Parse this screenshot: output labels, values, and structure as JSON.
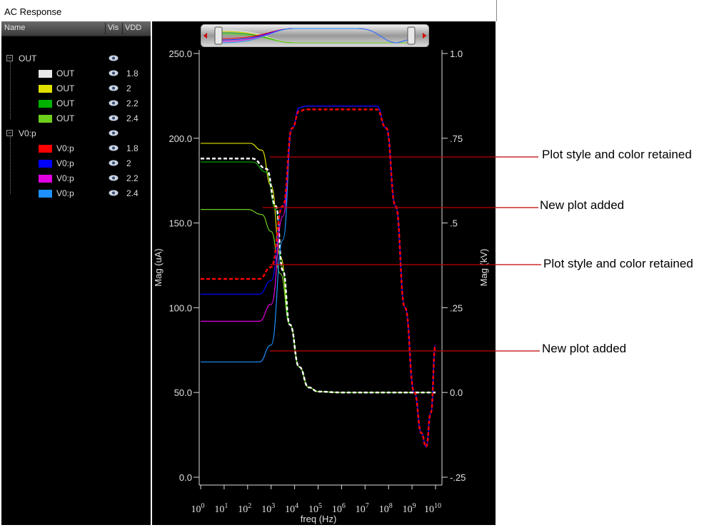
{
  "window": {
    "title": "AC Response"
  },
  "tree": {
    "headers": {
      "name": "Name",
      "vis": "Vis",
      "vdd": "VDD"
    },
    "groups": [
      {
        "label": "OUT",
        "items": [
          {
            "label": "OUT",
            "vdd": "1.8",
            "color": "#e8e8e8"
          },
          {
            "label": "OUT",
            "vdd": "2",
            "color": "#e0e000"
          },
          {
            "label": "OUT",
            "vdd": "2.2",
            "color": "#00b000"
          },
          {
            "label": "OUT",
            "vdd": "2.4",
            "color": "#6ccf1c"
          }
        ]
      },
      {
        "label": "V0:p",
        "items": [
          {
            "label": "V0:p",
            "vdd": "1.8",
            "color": "#ff0000"
          },
          {
            "label": "V0:p",
            "vdd": "2",
            "color": "#0000ff"
          },
          {
            "label": "V0:p",
            "vdd": "2.2",
            "color": "#e000e0"
          },
          {
            "label": "V0:p",
            "vdd": "2.4",
            "color": "#1e90ff"
          }
        ]
      }
    ]
  },
  "chart_data": {
    "type": "line",
    "xlabel": "freq (Hz)",
    "ylabel_left": "Mag (uA)",
    "ylabel_right": "Mag (kV)",
    "x_scale": "log",
    "x_ticks": [
      {
        "base": "10",
        "exp": "0"
      },
      {
        "base": "10",
        "exp": "1"
      },
      {
        "base": "10",
        "exp": "2"
      },
      {
        "base": "10",
        "exp": "3"
      },
      {
        "base": "10",
        "exp": "4"
      },
      {
        "base": "10",
        "exp": "5"
      },
      {
        "base": "10",
        "exp": "6"
      },
      {
        "base": "10",
        "exp": "7"
      },
      {
        "base": "10",
        "exp": "8"
      },
      {
        "base": "10",
        "exp": "9"
      },
      {
        "base": "10",
        "exp": "10"
      }
    ],
    "y_left_ticks": [
      "0.0",
      "50.0",
      "100.0",
      "150.0",
      "200.0",
      "250.0"
    ],
    "y_left_range": [
      0,
      250
    ],
    "y_right_ticks": [
      "-.25",
      "0.0",
      ".25",
      ".5",
      ".75",
      "1.0"
    ],
    "y_right_range": [
      -0.25,
      1.0
    ],
    "series": [
      {
        "group": "OUT",
        "vdd": "1.8",
        "color": "#ffffff",
        "dashed": true,
        "width": 2.5,
        "points": [
          [
            0,
            188
          ],
          [
            2.2,
            188
          ],
          [
            2.8,
            182
          ],
          [
            3.2,
            160
          ],
          [
            3.5,
            122
          ],
          [
            3.8,
            90
          ],
          [
            4.2,
            65
          ],
          [
            4.6,
            53
          ],
          [
            5.0,
            50.5
          ],
          [
            6,
            50
          ],
          [
            10,
            50
          ]
        ]
      },
      {
        "group": "OUT",
        "vdd": "2",
        "color": "#e0e000",
        "dashed": false,
        "width": 1.2,
        "points": [
          [
            0,
            197
          ],
          [
            2.1,
            197
          ],
          [
            2.6,
            193
          ],
          [
            3.0,
            172
          ],
          [
            3.4,
            130
          ],
          [
            3.8,
            90
          ],
          [
            4.2,
            65
          ],
          [
            4.6,
            53
          ],
          [
            5.0,
            50.5
          ],
          [
            6,
            50
          ],
          [
            10,
            50
          ]
        ]
      },
      {
        "group": "OUT",
        "vdd": "2.2",
        "color": "#00b000",
        "dashed": false,
        "width": 1.2,
        "points": [
          [
            0,
            186
          ],
          [
            2.2,
            186
          ],
          [
            2.8,
            180
          ],
          [
            3.2,
            158
          ],
          [
            3.5,
            122
          ],
          [
            3.8,
            90
          ],
          [
            4.2,
            65
          ],
          [
            4.6,
            53
          ],
          [
            5.0,
            50.5
          ],
          [
            6,
            50
          ],
          [
            10,
            50
          ]
        ]
      },
      {
        "group": "OUT",
        "vdd": "2.4",
        "color": "#6ccf1c",
        "dashed": false,
        "width": 1.2,
        "points": [
          [
            0,
            158
          ],
          [
            2.0,
            158
          ],
          [
            2.6,
            155
          ],
          [
            3.0,
            145
          ],
          [
            3.4,
            120
          ],
          [
            3.8,
            90
          ],
          [
            4.2,
            65
          ],
          [
            4.6,
            53
          ],
          [
            5.0,
            50.5
          ],
          [
            6,
            50
          ],
          [
            10,
            50
          ]
        ]
      },
      {
        "group": "V0:p",
        "vdd": "1.8",
        "color": "#ff0000",
        "dashed": true,
        "width": 2.5,
        "points": [
          [
            0,
            0.335
          ],
          [
            2.5,
            0.335
          ],
          [
            3.0,
            0.37
          ],
          [
            3.5,
            0.55
          ],
          [
            3.9,
            0.78
          ],
          [
            4.2,
            0.83
          ],
          [
            4.5,
            0.835
          ],
          [
            7.5,
            0.835
          ],
          [
            7.9,
            0.78
          ],
          [
            8.3,
            0.55
          ],
          [
            8.7,
            0.25
          ],
          [
            9.1,
            0.0
          ],
          [
            9.4,
            -0.12
          ],
          [
            9.6,
            -0.16
          ],
          [
            9.8,
            -0.06
          ],
          [
            10,
            0.14
          ]
        ]
      },
      {
        "group": "V0:p",
        "vdd": "2",
        "color": "#0000ff",
        "dashed": false,
        "width": 1.2,
        "points": [
          [
            0,
            0.29
          ],
          [
            2.5,
            0.29
          ],
          [
            3.0,
            0.33
          ],
          [
            3.5,
            0.55
          ],
          [
            3.9,
            0.78
          ],
          [
            4.2,
            0.84
          ],
          [
            4.5,
            0.845
          ],
          [
            7.5,
            0.845
          ],
          [
            7.9,
            0.78
          ],
          [
            8.3,
            0.55
          ],
          [
            8.7,
            0.25
          ],
          [
            9.1,
            0.0
          ],
          [
            9.4,
            -0.12
          ],
          [
            9.6,
            -0.16
          ],
          [
            9.8,
            -0.06
          ],
          [
            10,
            0.14
          ]
        ]
      },
      {
        "group": "V0:p",
        "vdd": "2.2",
        "color": "#e000e0",
        "dashed": false,
        "width": 1.2,
        "points": [
          [
            0,
            0.21
          ],
          [
            2.5,
            0.21
          ],
          [
            3.0,
            0.26
          ],
          [
            3.5,
            0.52
          ],
          [
            3.9,
            0.78
          ],
          [
            4.2,
            0.84
          ],
          [
            4.5,
            0.845
          ],
          [
            7.5,
            0.845
          ],
          [
            7.9,
            0.78
          ],
          [
            8.3,
            0.55
          ],
          [
            8.7,
            0.25
          ],
          [
            9.1,
            0.0
          ],
          [
            9.4,
            -0.12
          ],
          [
            9.6,
            -0.16
          ],
          [
            9.8,
            -0.06
          ],
          [
            10,
            0.14
          ]
        ]
      },
      {
        "group": "V0:p",
        "vdd": "2.4",
        "color": "#1e90ff",
        "dashed": false,
        "width": 1.2,
        "points": [
          [
            0,
            0.09
          ],
          [
            2.5,
            0.09
          ],
          [
            3.0,
            0.14
          ],
          [
            3.5,
            0.45
          ],
          [
            3.9,
            0.78
          ],
          [
            4.2,
            0.84
          ],
          [
            4.5,
            0.845
          ],
          [
            7.5,
            0.845
          ],
          [
            7.9,
            0.78
          ],
          [
            8.3,
            0.55
          ],
          [
            8.7,
            0.25
          ],
          [
            9.1,
            0.0
          ],
          [
            9.4,
            -0.12
          ],
          [
            9.6,
            -0.16
          ],
          [
            9.8,
            -0.06
          ],
          [
            10,
            0.14
          ]
        ]
      }
    ]
  },
  "annotations": [
    {
      "text": "Plot style and color retained"
    },
    {
      "text": "New plot added"
    },
    {
      "text": "Plot style and color retained"
    },
    {
      "text": "New plot added"
    }
  ]
}
